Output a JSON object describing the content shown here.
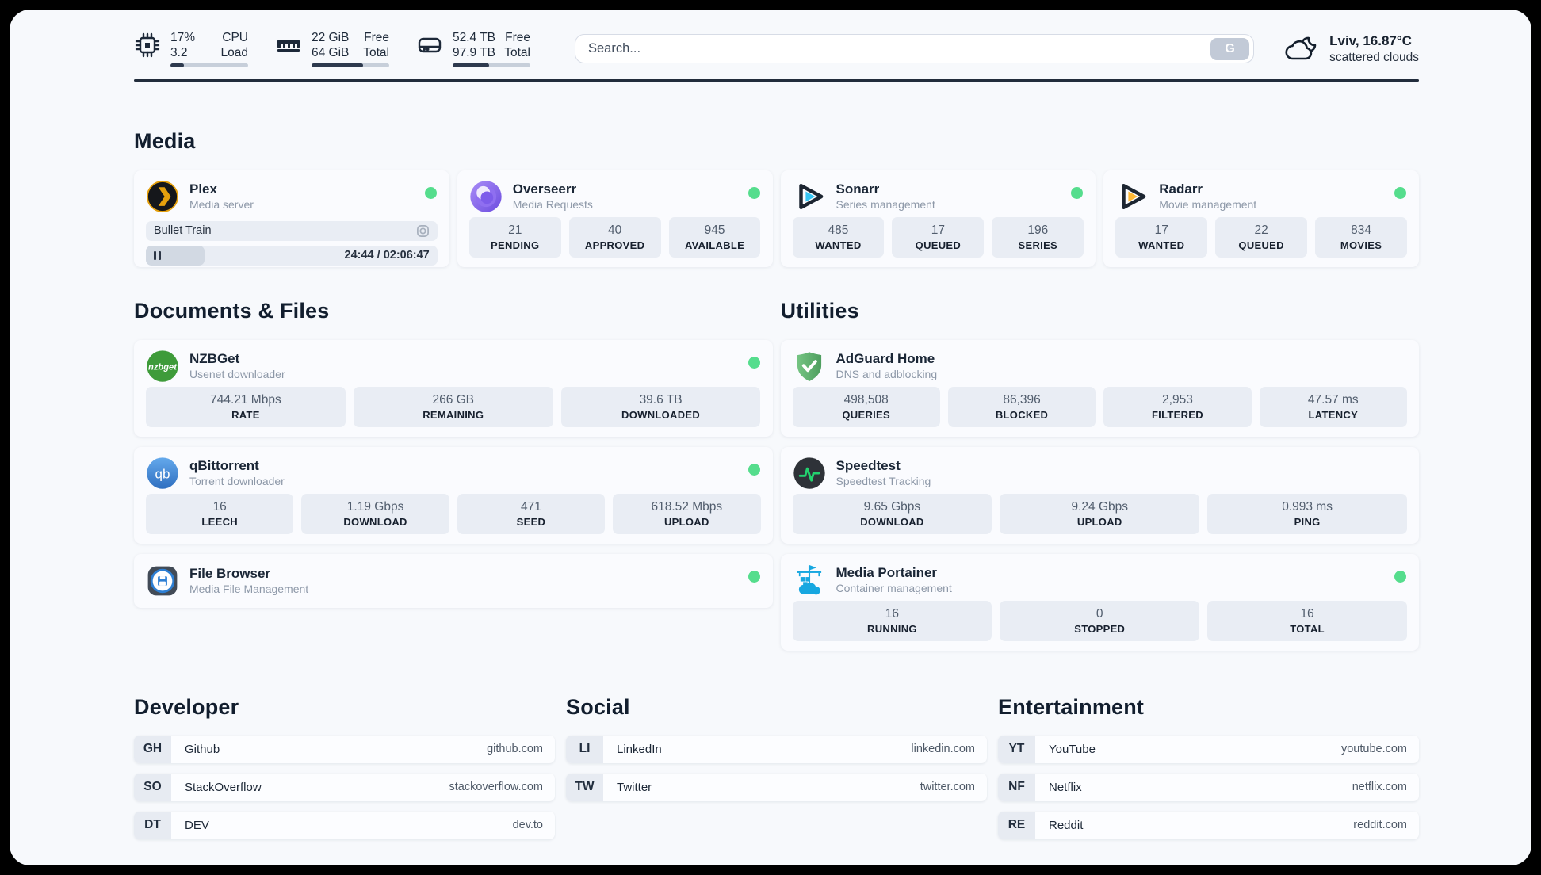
{
  "theme": {
    "status_green": "#55dd8d",
    "bar_fill": "#2e3a4e",
    "bar_track": "#c7cfda",
    "tile_bg": "#e9edf4",
    "page_bg": "#f7f9fc"
  },
  "header": {
    "cpu": {
      "top_value": "17%",
      "bottom_value": "3.2",
      "top_label": "CPU",
      "bottom_label": "Load",
      "progress": "17%"
    },
    "memory": {
      "top_value": "22 GiB",
      "bottom_value": "64 GiB",
      "top_label": "Free",
      "bottom_label": "Total",
      "progress": "66%"
    },
    "disk": {
      "top_value": "52.4 TB",
      "bottom_value": "97.9 TB",
      "top_label": "Free",
      "bottom_label": "Total",
      "progress": "47%"
    },
    "search": {
      "placeholder": "Search...",
      "button_label": "G"
    },
    "weather": {
      "location_temp": "Lviv, 16.87°C",
      "condition": "scattered clouds"
    }
  },
  "media": {
    "title": "Media",
    "plex": {
      "name": "Plex",
      "subtitle": "Media server",
      "now_playing": "Bullet Train",
      "time": "24:44 / 02:06:47",
      "progress": "20%"
    },
    "overseerr": {
      "name": "Overseerr",
      "subtitle": "Media Requests",
      "stats": [
        {
          "value": "21",
          "label": "PENDING"
        },
        {
          "value": "40",
          "label": "APPROVED"
        },
        {
          "value": "945",
          "label": "AVAILABLE"
        }
      ]
    },
    "sonarr": {
      "name": "Sonarr",
      "subtitle": "Series management",
      "stats": [
        {
          "value": "485",
          "label": "WANTED"
        },
        {
          "value": "17",
          "label": "QUEUED"
        },
        {
          "value": "196",
          "label": "SERIES"
        }
      ]
    },
    "radarr": {
      "name": "Radarr",
      "subtitle": "Movie management",
      "stats": [
        {
          "value": "17",
          "label": "WANTED"
        },
        {
          "value": "22",
          "label": "QUEUED"
        },
        {
          "value": "834",
          "label": "MOVIES"
        }
      ]
    }
  },
  "documents": {
    "title": "Documents & Files",
    "nzbget": {
      "name": "NZBGet",
      "subtitle": "Usenet downloader",
      "stats": [
        {
          "value": "744.21 Mbps",
          "label": "RATE"
        },
        {
          "value": "266 GB",
          "label": "REMAINING"
        },
        {
          "value": "39.6 TB",
          "label": "DOWNLOADED"
        }
      ]
    },
    "qbittorrent": {
      "name": "qBittorrent",
      "subtitle": "Torrent downloader",
      "stats": [
        {
          "value": "16",
          "label": "LEECH"
        },
        {
          "value": "1.19 Gbps",
          "label": "DOWNLOAD"
        },
        {
          "value": "471",
          "label": "SEED"
        },
        {
          "value": "618.52 Mbps",
          "label": "UPLOAD"
        }
      ]
    },
    "filebrowser": {
      "name": "File Browser",
      "subtitle": "Media File Management"
    }
  },
  "utilities": {
    "title": "Utilities",
    "adguard": {
      "name": "AdGuard Home",
      "subtitle": "DNS and adblocking",
      "stats": [
        {
          "value": "498,508",
          "label": "QUERIES"
        },
        {
          "value": "86,396",
          "label": "BLOCKED"
        },
        {
          "value": "2,953",
          "label": "FILTERED"
        },
        {
          "value": "47.57 ms",
          "label": "LATENCY"
        }
      ]
    },
    "speedtest": {
      "name": "Speedtest",
      "subtitle": "Speedtest Tracking",
      "stats": [
        {
          "value": "9.65 Gbps",
          "label": "DOWNLOAD"
        },
        {
          "value": "9.24 Gbps",
          "label": "UPLOAD"
        },
        {
          "value": "0.993 ms",
          "label": "PING"
        }
      ]
    },
    "portainer": {
      "name": "Media Portainer",
      "subtitle": "Container management",
      "stats": [
        {
          "value": "16",
          "label": "RUNNING"
        },
        {
          "value": "0",
          "label": "STOPPED"
        },
        {
          "value": "16",
          "label": "TOTAL"
        }
      ]
    }
  },
  "links": {
    "developer": {
      "title": "Developer",
      "items": [
        {
          "tag": "GH",
          "name": "Github",
          "url": "github.com"
        },
        {
          "tag": "SO",
          "name": "StackOverflow",
          "url": "stackoverflow.com"
        },
        {
          "tag": "DT",
          "name": "DEV",
          "url": "dev.to"
        }
      ]
    },
    "social": {
      "title": "Social",
      "items": [
        {
          "tag": "LI",
          "name": "LinkedIn",
          "url": "linkedin.com"
        },
        {
          "tag": "TW",
          "name": "Twitter",
          "url": "twitter.com"
        }
      ]
    },
    "entertainment": {
      "title": "Entertainment",
      "items": [
        {
          "tag": "YT",
          "name": "YouTube",
          "url": "youtube.com"
        },
        {
          "tag": "NF",
          "name": "Netflix",
          "url": "netflix.com"
        },
        {
          "tag": "RE",
          "name": "Reddit",
          "url": "reddit.com"
        }
      ]
    }
  }
}
